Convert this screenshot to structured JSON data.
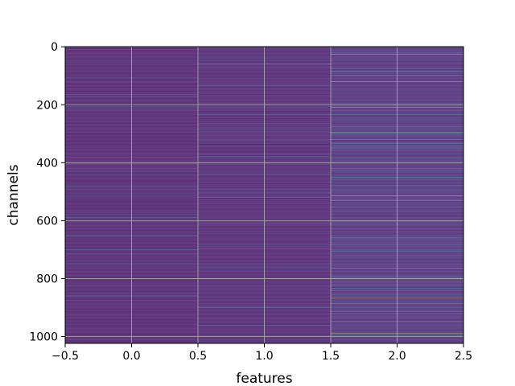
{
  "chart_data": {
    "type": "heatmap",
    "xlabel": "features",
    "ylabel": "channels",
    "xlim": [
      -0.5,
      2.5
    ],
    "ylim": [
      1023.5,
      -0.5
    ],
    "x_ticks": [
      -0.5,
      0.0,
      0.5,
      1.0,
      1.5,
      2.0,
      2.5
    ],
    "x_tick_labels": [
      "−0.5",
      "0.0",
      "0.5",
      "1.0",
      "1.5",
      "2.0",
      "2.5"
    ],
    "y_ticks": [
      0,
      200,
      400,
      600,
      800,
      1000
    ],
    "y_tick_labels": [
      "0",
      "200",
      "400",
      "600",
      "800",
      "1000"
    ],
    "n_rows": 1024,
    "n_cols": 3,
    "colormap": "viridis",
    "value_range": [
      0,
      1
    ],
    "grid": true,
    "base_levels": [
      0.03,
      0.04,
      0.07
    ],
    "highlights": [
      {
        "col": 0,
        "row": 403,
        "value": 0.45
      },
      {
        "col": 0,
        "row": 700,
        "value": 0.4
      },
      {
        "col": 0,
        "row": 800,
        "value": 0.7
      },
      {
        "col": 0,
        "row": 860,
        "value": 0.45
      },
      {
        "col": 1,
        "row": 520,
        "value": 0.5
      },
      {
        "col": 1,
        "row": 760,
        "value": 0.35
      },
      {
        "col": 1,
        "row": 265,
        "value": 0.3
      },
      {
        "col": 2,
        "row": 25,
        "value": 0.95
      },
      {
        "col": 2,
        "row": 120,
        "value": 0.95
      },
      {
        "col": 2,
        "row": 210,
        "value": 0.85
      },
      {
        "col": 2,
        "row": 295,
        "value": 0.75
      },
      {
        "col": 2,
        "row": 450,
        "value": 0.55
      },
      {
        "col": 2,
        "row": 515,
        "value": 0.95
      },
      {
        "col": 2,
        "row": 530,
        "value": 0.7
      },
      {
        "col": 2,
        "row": 680,
        "value": 0.5
      },
      {
        "col": 2,
        "row": 765,
        "value": 0.6
      },
      {
        "col": 2,
        "row": 800,
        "value": 0.55
      },
      {
        "col": 2,
        "row": 868,
        "value": 0.95
      },
      {
        "col": 2,
        "row": 885,
        "value": 0.6
      },
      {
        "col": 2,
        "row": 990,
        "value": 0.95
      }
    ]
  }
}
